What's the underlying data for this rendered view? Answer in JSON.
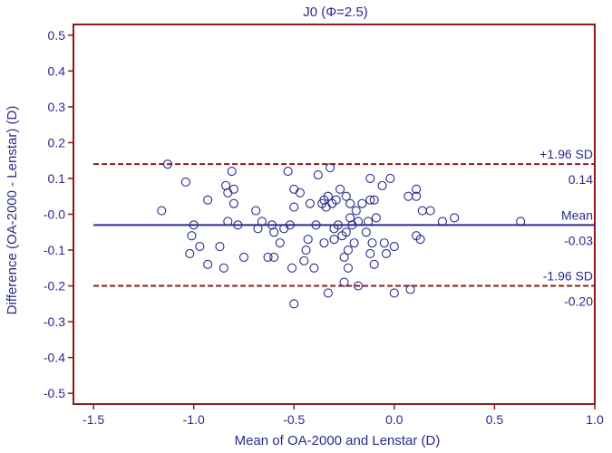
{
  "chart_data": {
    "type": "scatter",
    "title": "J0 (Φ=2.5)",
    "xlabel": "Mean of OA-2000 and Lenstar (D)",
    "ylabel": "Difference (OA-2000 - Lenstar) (D)",
    "xlim": [
      -1.6,
      1.0
    ],
    "ylim": [
      -0.53,
      0.53
    ],
    "x_ticks": [
      {
        "value": -1.5,
        "label": "-1.5"
      },
      {
        "value": -1.0,
        "label": "-1.0"
      },
      {
        "value": -0.5,
        "label": "-0.5"
      },
      {
        "value": 0.0,
        "label": "0.0"
      },
      {
        "value": 0.5,
        "label": "0.5"
      },
      {
        "value": 1.0,
        "label": "1.0"
      }
    ],
    "y_ticks": [
      {
        "value": 0.5,
        "label": "0.5"
      },
      {
        "value": 0.4,
        "label": "0.4"
      },
      {
        "value": 0.3,
        "label": "0.3"
      },
      {
        "value": 0.2,
        "label": "0.2"
      },
      {
        "value": 0.1,
        "label": "0.1"
      },
      {
        "value": 0.0,
        "label": "-0.0"
      },
      {
        "value": -0.1,
        "label": "-0.1"
      },
      {
        "value": -0.2,
        "label": "-0.2"
      },
      {
        "value": -0.3,
        "label": "-0.3"
      },
      {
        "value": -0.4,
        "label": "-0.4"
      },
      {
        "value": -0.5,
        "label": "-0.5"
      }
    ],
    "grid": false,
    "reference_lines": [
      {
        "name": "+1.96 SD",
        "value": 0.14,
        "value_label": "0.14",
        "style": "dashed",
        "color": "#8b1a1a"
      },
      {
        "name": "Mean",
        "value": -0.03,
        "value_label": "-0.03",
        "style": "solid",
        "color": "#2b2b8a"
      },
      {
        "name": "-1.96 SD",
        "value": -0.2,
        "value_label": "-0.20",
        "style": "dashed",
        "color": "#8b1a1a"
      }
    ],
    "points": [
      {
        "x": -1.16,
        "y": 0.01
      },
      {
        "x": -1.13,
        "y": 0.14
      },
      {
        "x": -1.04,
        "y": 0.09
      },
      {
        "x": -1.02,
        "y": -0.11
      },
      {
        "x": -1.01,
        "y": -0.06
      },
      {
        "x": -1.0,
        "y": -0.03
      },
      {
        "x": -0.97,
        "y": -0.09
      },
      {
        "x": -0.93,
        "y": 0.04
      },
      {
        "x": -0.93,
        "y": -0.14
      },
      {
        "x": -0.87,
        "y": -0.09
      },
      {
        "x": -0.85,
        "y": -0.15
      },
      {
        "x": -0.84,
        "y": 0.08
      },
      {
        "x": -0.83,
        "y": 0.06
      },
      {
        "x": -0.83,
        "y": -0.02
      },
      {
        "x": -0.81,
        "y": 0.12
      },
      {
        "x": -0.8,
        "y": 0.07
      },
      {
        "x": -0.8,
        "y": 0.03
      },
      {
        "x": -0.78,
        "y": -0.03
      },
      {
        "x": -0.75,
        "y": -0.12
      },
      {
        "x": -0.69,
        "y": 0.01
      },
      {
        "x": -0.68,
        "y": -0.04
      },
      {
        "x": -0.66,
        "y": -0.02
      },
      {
        "x": -0.63,
        "y": -0.12
      },
      {
        "x": -0.61,
        "y": -0.03
      },
      {
        "x": -0.6,
        "y": -0.05
      },
      {
        "x": -0.6,
        "y": -0.12
      },
      {
        "x": -0.57,
        "y": -0.08
      },
      {
        "x": -0.55,
        "y": -0.04
      },
      {
        "x": -0.53,
        "y": 0.12
      },
      {
        "x": -0.52,
        "y": -0.03
      },
      {
        "x": -0.51,
        "y": -0.15
      },
      {
        "x": -0.5,
        "y": 0.07
      },
      {
        "x": -0.5,
        "y": 0.02
      },
      {
        "x": -0.5,
        "y": -0.25
      },
      {
        "x": -0.47,
        "y": 0.06
      },
      {
        "x": -0.45,
        "y": -0.13
      },
      {
        "x": -0.44,
        "y": -0.1
      },
      {
        "x": -0.43,
        "y": -0.07
      },
      {
        "x": -0.42,
        "y": 0.03
      },
      {
        "x": -0.4,
        "y": -0.15
      },
      {
        "x": -0.39,
        "y": -0.03
      },
      {
        "x": -0.38,
        "y": 0.11
      },
      {
        "x": -0.36,
        "y": 0.03
      },
      {
        "x": -0.35,
        "y": 0.04
      },
      {
        "x": -0.35,
        "y": -0.08
      },
      {
        "x": -0.34,
        "y": 0.02
      },
      {
        "x": -0.33,
        "y": 0.05
      },
      {
        "x": -0.33,
        "y": -0.22
      },
      {
        "x": -0.32,
        "y": 0.13
      },
      {
        "x": -0.31,
        "y": 0.03
      },
      {
        "x": -0.3,
        "y": -0.04
      },
      {
        "x": -0.3,
        "y": -0.07
      },
      {
        "x": -0.29,
        "y": 0.04
      },
      {
        "x": -0.28,
        "y": -0.03
      },
      {
        "x": -0.27,
        "y": 0.07
      },
      {
        "x": -0.26,
        "y": -0.06
      },
      {
        "x": -0.25,
        "y": -0.12
      },
      {
        "x": -0.25,
        "y": -0.19
      },
      {
        "x": -0.24,
        "y": 0.05
      },
      {
        "x": -0.24,
        "y": -0.05
      },
      {
        "x": -0.23,
        "y": -0.1
      },
      {
        "x": -0.23,
        "y": -0.15
      },
      {
        "x": -0.22,
        "y": 0.03
      },
      {
        "x": -0.22,
        "y": -0.01
      },
      {
        "x": -0.21,
        "y": -0.03
      },
      {
        "x": -0.2,
        "y": -0.08
      },
      {
        "x": -0.19,
        "y": 0.01
      },
      {
        "x": -0.18,
        "y": -0.02
      },
      {
        "x": -0.18,
        "y": -0.2
      },
      {
        "x": -0.16,
        "y": 0.03
      },
      {
        "x": -0.14,
        "y": -0.05
      },
      {
        "x": -0.13,
        "y": -0.02
      },
      {
        "x": -0.12,
        "y": 0.1
      },
      {
        "x": -0.12,
        "y": 0.04
      },
      {
        "x": -0.12,
        "y": -0.11
      },
      {
        "x": -0.11,
        "y": -0.08
      },
      {
        "x": -0.1,
        "y": 0.04
      },
      {
        "x": -0.1,
        "y": -0.14
      },
      {
        "x": -0.09,
        "y": -0.01
      },
      {
        "x": -0.06,
        "y": 0.08
      },
      {
        "x": -0.05,
        "y": -0.08
      },
      {
        "x": -0.04,
        "y": -0.11
      },
      {
        "x": -0.02,
        "y": 0.1
      },
      {
        "x": 0.0,
        "y": -0.09
      },
      {
        "x": 0.0,
        "y": -0.22
      },
      {
        "x": 0.07,
        "y": 0.05
      },
      {
        "x": 0.08,
        "y": -0.21
      },
      {
        "x": 0.11,
        "y": 0.07
      },
      {
        "x": 0.11,
        "y": 0.05
      },
      {
        "x": 0.11,
        "y": -0.06
      },
      {
        "x": 0.13,
        "y": -0.07
      },
      {
        "x": 0.14,
        "y": 0.01
      },
      {
        "x": 0.18,
        "y": 0.01
      },
      {
        "x": 0.24,
        "y": -0.02
      },
      {
        "x": 0.3,
        "y": -0.01
      },
      {
        "x": 0.63,
        "y": -0.02
      }
    ]
  },
  "colors": {
    "axis": "#8b1a1a",
    "text": "#2b2b8a",
    "points": "#2b2b8a",
    "background": "#ffffff"
  }
}
